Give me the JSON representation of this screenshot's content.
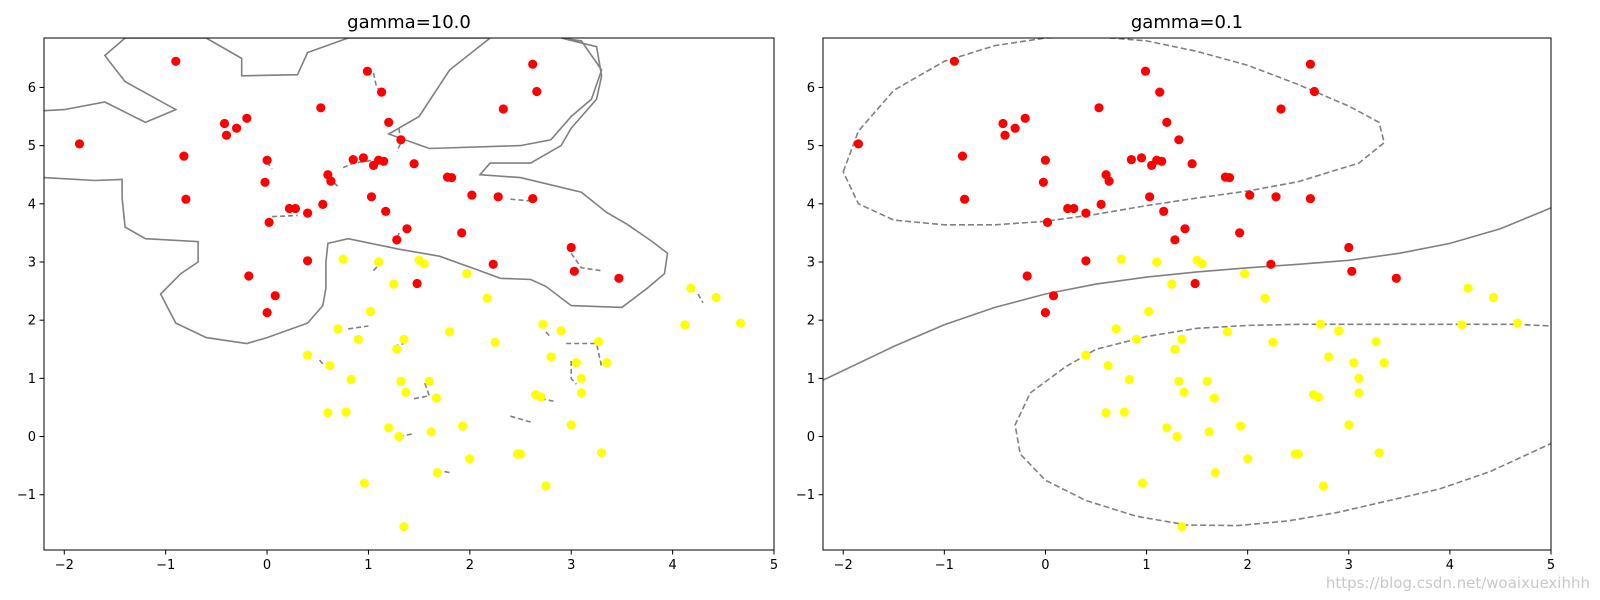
{
  "watermark": "https://blog.csdn.net/woaixuexihhh",
  "colors": {
    "class_a": "#ff0000",
    "class_b": "#ffff00",
    "contour": "#808080",
    "axes": "#000000"
  },
  "chart_data": [
    {
      "type": "scatter",
      "title": "gamma=10.0",
      "xlabel": "",
      "ylabel": "",
      "xlim": [
        -2.2,
        5.0
      ],
      "ylim": [
        -1.95,
        6.85
      ],
      "xticks": [
        -2,
        -1,
        0,
        1,
        2,
        3,
        4,
        5
      ],
      "yticks": [
        -1,
        0,
        1,
        2,
        3,
        4,
        5,
        6
      ],
      "grid": false,
      "series": [
        {
          "color": "#ff0000",
          "points": [
            [
              -1.85,
              5.03
            ],
            [
              -0.9,
              6.45
            ],
            [
              -0.82,
              4.82
            ],
            [
              -0.8,
              4.08
            ],
            [
              -0.42,
              5.38
            ],
            [
              -0.4,
              5.18
            ],
            [
              -0.3,
              5.3
            ],
            [
              -0.2,
              5.47
            ],
            [
              -0.18,
              2.76
            ],
            [
              0.0,
              4.75
            ],
            [
              -0.02,
              4.37
            ],
            [
              0.02,
              3.68
            ],
            [
              0.0,
              2.13
            ],
            [
              0.08,
              2.42
            ],
            [
              0.22,
              3.92
            ],
            [
              0.28,
              3.92
            ],
            [
              0.4,
              3.84
            ],
            [
              0.4,
              3.02
            ],
            [
              0.53,
              5.65
            ],
            [
              0.55,
              3.99
            ],
            [
              0.6,
              4.5
            ],
            [
              0.63,
              4.39
            ],
            [
              0.85,
              4.76
            ],
            [
              0.95,
              4.79
            ],
            [
              0.99,
              6.28
            ],
            [
              1.03,
              4.12
            ],
            [
              1.05,
              4.66
            ],
            [
              1.1,
              4.75
            ],
            [
              1.13,
              5.92
            ],
            [
              1.15,
              4.73
            ],
            [
              1.17,
              3.87
            ],
            [
              1.2,
              5.4
            ],
            [
              1.28,
              3.38
            ],
            [
              1.32,
              5.1
            ],
            [
              1.38,
              3.57
            ],
            [
              1.45,
              4.69
            ],
            [
              1.48,
              2.63
            ],
            [
              1.78,
              4.46
            ],
            [
              1.82,
              4.45
            ],
            [
              1.92,
              3.5
            ],
            [
              2.02,
              4.15
            ],
            [
              2.23,
              2.96
            ],
            [
              2.28,
              4.12
            ],
            [
              2.33,
              5.63
            ],
            [
              2.62,
              6.4
            ],
            [
              2.62,
              4.09
            ],
            [
              2.66,
              5.93
            ],
            [
              3.0,
              3.25
            ],
            [
              3.03,
              2.84
            ],
            [
              3.47,
              2.72
            ]
          ]
        },
        {
          "color": "#ffff00",
          "points": [
            [
              0.4,
              1.4
            ],
            [
              0.62,
              1.22
            ],
            [
              0.6,
              0.41
            ],
            [
              0.7,
              1.85
            ],
            [
              0.75,
              3.05
            ],
            [
              0.78,
              0.42
            ],
            [
              0.83,
              0.98
            ],
            [
              0.9,
              1.67
            ],
            [
              0.96,
              -0.8
            ],
            [
              1.02,
              2.15
            ],
            [
              1.1,
              3.0
            ],
            [
              1.2,
              0.15
            ],
            [
              1.25,
              2.62
            ],
            [
              1.28,
              1.5
            ],
            [
              1.3,
              0.0
            ],
            [
              1.32,
              0.95
            ],
            [
              1.35,
              1.67
            ],
            [
              1.37,
              0.76
            ],
            [
              1.35,
              -1.55
            ],
            [
              1.5,
              3.03
            ],
            [
              1.55,
              2.97
            ],
            [
              1.6,
              0.95
            ],
            [
              1.62,
              0.08
            ],
            [
              1.67,
              0.66
            ],
            [
              1.68,
              -0.62
            ],
            [
              1.8,
              1.8
            ],
            [
              1.93,
              0.18
            ],
            [
              1.97,
              2.8
            ],
            [
              2.0,
              -0.38
            ],
            [
              2.17,
              2.38
            ],
            [
              2.25,
              1.62
            ],
            [
              2.47,
              -0.3
            ],
            [
              2.5,
              -0.3
            ],
            [
              2.65,
              0.72
            ],
            [
              2.7,
              0.68
            ],
            [
              2.72,
              1.93
            ],
            [
              2.75,
              -0.85
            ],
            [
              2.8,
              1.37
            ],
            [
              2.9,
              1.82
            ],
            [
              3.0,
              0.2
            ],
            [
              3.05,
              1.27
            ],
            [
              3.1,
              1.0
            ],
            [
              3.1,
              0.75
            ],
            [
              3.27,
              1.63
            ],
            [
              3.3,
              -0.28
            ],
            [
              3.35,
              1.27
            ],
            [
              4.12,
              1.92
            ],
            [
              4.18,
              2.55
            ],
            [
              4.43,
              2.39
            ],
            [
              4.67,
              1.95
            ]
          ]
        }
      ]
    },
    {
      "type": "scatter",
      "title": "gamma=0.1",
      "xlabel": "",
      "ylabel": "",
      "xlim": [
        -2.2,
        5.0
      ],
      "ylim": [
        -1.95,
        6.85
      ],
      "xticks": [
        -2,
        -1,
        0,
        1,
        2,
        3,
        4,
        5
      ],
      "yticks": [
        -1,
        0,
        1,
        2,
        3,
        4,
        5,
        6
      ],
      "grid": false,
      "series": [
        {
          "color": "#ff0000",
          "points": [
            [
              -1.85,
              5.03
            ],
            [
              -0.9,
              6.45
            ],
            [
              -0.82,
              4.82
            ],
            [
              -0.8,
              4.08
            ],
            [
              -0.42,
              5.38
            ],
            [
              -0.4,
              5.18
            ],
            [
              -0.3,
              5.3
            ],
            [
              -0.2,
              5.47
            ],
            [
              -0.18,
              2.76
            ],
            [
              0.0,
              4.75
            ],
            [
              -0.02,
              4.37
            ],
            [
              0.02,
              3.68
            ],
            [
              0.0,
              2.13
            ],
            [
              0.08,
              2.42
            ],
            [
              0.22,
              3.92
            ],
            [
              0.28,
              3.92
            ],
            [
              0.4,
              3.84
            ],
            [
              0.4,
              3.02
            ],
            [
              0.53,
              5.65
            ],
            [
              0.55,
              3.99
            ],
            [
              0.6,
              4.5
            ],
            [
              0.63,
              4.39
            ],
            [
              0.85,
              4.76
            ],
            [
              0.95,
              4.79
            ],
            [
              0.99,
              6.28
            ],
            [
              1.03,
              4.12
            ],
            [
              1.05,
              4.66
            ],
            [
              1.1,
              4.75
            ],
            [
              1.13,
              5.92
            ],
            [
              1.15,
              4.73
            ],
            [
              1.17,
              3.87
            ],
            [
              1.2,
              5.4
            ],
            [
              1.28,
              3.38
            ],
            [
              1.32,
              5.1
            ],
            [
              1.38,
              3.57
            ],
            [
              1.45,
              4.69
            ],
            [
              1.48,
              2.63
            ],
            [
              1.78,
              4.46
            ],
            [
              1.82,
              4.45
            ],
            [
              1.92,
              3.5
            ],
            [
              2.02,
              4.15
            ],
            [
              2.23,
              2.96
            ],
            [
              2.28,
              4.12
            ],
            [
              2.33,
              5.63
            ],
            [
              2.62,
              6.4
            ],
            [
              2.62,
              4.09
            ],
            [
              2.66,
              5.93
            ],
            [
              3.0,
              3.25
            ],
            [
              3.03,
              2.84
            ],
            [
              3.47,
              2.72
            ]
          ]
        },
        {
          "color": "#ffff00",
          "points": [
            [
              0.4,
              1.4
            ],
            [
              0.62,
              1.22
            ],
            [
              0.6,
              0.41
            ],
            [
              0.7,
              1.85
            ],
            [
              0.75,
              3.05
            ],
            [
              0.78,
              0.42
            ],
            [
              0.83,
              0.98
            ],
            [
              0.9,
              1.67
            ],
            [
              0.96,
              -0.8
            ],
            [
              1.02,
              2.15
            ],
            [
              1.1,
              3.0
            ],
            [
              1.2,
              0.15
            ],
            [
              1.25,
              2.62
            ],
            [
              1.28,
              1.5
            ],
            [
              1.3,
              0.0
            ],
            [
              1.32,
              0.95
            ],
            [
              1.35,
              1.67
            ],
            [
              1.37,
              0.76
            ],
            [
              1.35,
              -1.55
            ],
            [
              1.5,
              3.03
            ],
            [
              1.55,
              2.97
            ],
            [
              1.6,
              0.95
            ],
            [
              1.62,
              0.08
            ],
            [
              1.67,
              0.66
            ],
            [
              1.68,
              -0.62
            ],
            [
              1.8,
              1.8
            ],
            [
              1.93,
              0.18
            ],
            [
              1.97,
              2.8
            ],
            [
              2.0,
              -0.38
            ],
            [
              2.17,
              2.38
            ],
            [
              2.25,
              1.62
            ],
            [
              2.47,
              -0.3
            ],
            [
              2.5,
              -0.3
            ],
            [
              2.65,
              0.72
            ],
            [
              2.7,
              0.68
            ],
            [
              2.72,
              1.93
            ],
            [
              2.75,
              -0.85
            ],
            [
              2.8,
              1.37
            ],
            [
              2.9,
              1.82
            ],
            [
              3.0,
              0.2
            ],
            [
              3.05,
              1.27
            ],
            [
              3.1,
              1.0
            ],
            [
              3.1,
              0.75
            ],
            [
              3.27,
              1.63
            ],
            [
              3.3,
              -0.28
            ],
            [
              3.35,
              1.27
            ],
            [
              4.12,
              1.92
            ],
            [
              4.18,
              2.55
            ],
            [
              4.43,
              2.39
            ],
            [
              4.67,
              1.95
            ]
          ]
        }
      ],
      "contours": [
        {
          "style": "solid",
          "closed": false,
          "points": [
            [
              -2.2,
              0.97
            ],
            [
              -1.5,
              1.55
            ],
            [
              -1.0,
              1.92
            ],
            [
              -0.5,
              2.22
            ],
            [
              0.0,
              2.45
            ],
            [
              0.5,
              2.62
            ],
            [
              1.0,
              2.74
            ],
            [
              1.5,
              2.83
            ],
            [
              2.0,
              2.9
            ],
            [
              2.5,
              2.96
            ],
            [
              3.0,
              3.03
            ],
            [
              3.5,
              3.15
            ],
            [
              4.0,
              3.32
            ],
            [
              4.5,
              3.57
            ],
            [
              5.0,
              3.93
            ]
          ]
        },
        {
          "style": "dashed",
          "closed": true,
          "points": [
            [
              -2.0,
              4.55
            ],
            [
              -1.85,
              5.25
            ],
            [
              -1.5,
              5.95
            ],
            [
              -1.0,
              6.45
            ],
            [
              -0.5,
              6.72
            ],
            [
              0.0,
              6.85
            ],
            [
              0.5,
              6.87
            ],
            [
              1.0,
              6.8
            ],
            [
              1.5,
              6.62
            ],
            [
              2.0,
              6.38
            ],
            [
              2.5,
              6.05
            ],
            [
              3.0,
              5.68
            ],
            [
              3.3,
              5.4
            ],
            [
              3.35,
              5.05
            ],
            [
              3.1,
              4.7
            ],
            [
              2.5,
              4.38
            ],
            [
              2.0,
              4.22
            ],
            [
              1.5,
              4.1
            ],
            [
              1.0,
              3.97
            ],
            [
              0.5,
              3.82
            ],
            [
              0.0,
              3.7
            ],
            [
              -0.5,
              3.64
            ],
            [
              -1.0,
              3.64
            ],
            [
              -1.5,
              3.72
            ],
            [
              -1.85,
              4.0
            ]
          ]
        },
        {
          "style": "dashed",
          "closed": false,
          "points": [
            [
              4.65,
              1.93
            ],
            [
              4.0,
              1.93
            ],
            [
              3.5,
              1.93
            ],
            [
              3.0,
              1.93
            ],
            [
              2.5,
              1.93
            ],
            [
              2.0,
              1.91
            ],
            [
              1.5,
              1.86
            ],
            [
              1.0,
              1.72
            ],
            [
              0.5,
              1.5
            ],
            [
              0.2,
              1.2
            ],
            [
              -0.15,
              0.75
            ],
            [
              -0.3,
              0.2
            ],
            [
              -0.25,
              -0.3
            ],
            [
              0.0,
              -0.75
            ],
            [
              0.4,
              -1.1
            ],
            [
              0.9,
              -1.37
            ],
            [
              1.4,
              -1.52
            ],
            [
              1.9,
              -1.53
            ],
            [
              2.4,
              -1.45
            ],
            [
              2.9,
              -1.3
            ],
            [
              3.4,
              -1.1
            ],
            [
              3.9,
              -0.9
            ],
            [
              4.4,
              -0.6
            ],
            [
              5.0,
              -0.12
            ]
          ]
        },
        {
          "style": "dashed",
          "closed": false,
          "points": [
            [
              4.65,
              1.93
            ],
            [
              5.0,
              1.9
            ]
          ]
        }
      ]
    }
  ]
}
